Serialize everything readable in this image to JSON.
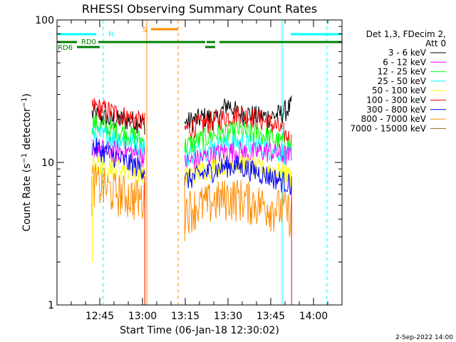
{
  "chart_data": {
    "type": "line",
    "title": "RHESSI Observing Summary Count Rates",
    "xlabel": "Start Time (06-Jan-18 12:30:02)",
    "ylabel": "Count Rate (s⁻¹ detector⁻¹)",
    "ylabel_main": "Count Rate (s",
    "ylabel_sup1": "−1",
    "ylabel_mid": " detector",
    "ylabel_sup2": "−1",
    "ylabel_end": ")",
    "y_scale": "log",
    "ylim": [
      1,
      100
    ],
    "yticks": [
      {
        "value": 1,
        "label": "1"
      },
      {
        "value": 10,
        "label": "10"
      },
      {
        "value": 100,
        "label": "100"
      }
    ],
    "xlim_minutes": [
      0,
      100
    ],
    "xticks": [
      {
        "minute": 15,
        "label": "12:45"
      },
      {
        "minute": 30,
        "label": "13:00"
      },
      {
        "minute": 45,
        "label": "13:15"
      },
      {
        "minute": 60,
        "label": "13:30"
      },
      {
        "minute": 75,
        "label": "13:45"
      },
      {
        "minute": 90,
        "label": "14:00"
      }
    ],
    "legend_header": [
      "Det 1,3, FDecim 2,",
      "Att 0"
    ],
    "legend_placement": "right",
    "data_segments_minutes": [
      [
        12.3,
        30.8
      ],
      [
        44.8,
        82.3
      ]
    ],
    "series": [
      {
        "name": "3 - 6 keV",
        "color": "#000000",
        "seg1": [
          22,
          20,
          20,
          19
        ],
        "seg2": [
          19,
          20,
          21,
          20,
          26,
          22,
          22,
          21,
          21,
          22,
          25
        ]
      },
      {
        "name": "6 - 12 keV",
        "color": "#ff00ff",
        "seg1": [
          13,
          12,
          12,
          11
        ],
        "seg2": [
          10,
          10.5,
          11,
          11.5,
          12,
          12,
          11.5,
          12,
          12,
          11.5,
          11
        ]
      },
      {
        "name": "12 - 25 keV",
        "color": "#00ff00",
        "seg1": [
          19,
          17,
          16,
          14
        ],
        "seg2": [
          13,
          14,
          15,
          16,
          16,
          17,
          16,
          16,
          15,
          14,
          13
        ]
      },
      {
        "name": "25 - 50 keV",
        "color": "#00ffff",
        "seg1": [
          16,
          15,
          14,
          13
        ],
        "seg2": [
          11,
          12,
          12.5,
          13,
          13.5,
          14,
          13.5,
          13,
          12.5,
          12,
          11
        ]
      },
      {
        "name": "50 - 100 keV",
        "color": "#ffff00",
        "seg1": [
          10,
          9.5,
          9,
          8.5
        ],
        "seg2": [
          8,
          8.5,
          9,
          9.5,
          10,
          10,
          9.5,
          9,
          9,
          8.5,
          8
        ]
      },
      {
        "name": "100 - 300 keV",
        "color": "#ff0000",
        "seg1": [
          25,
          23,
          21,
          19
        ],
        "seg2": [
          17,
          18,
          19,
          20,
          21,
          22,
          21,
          20,
          19,
          17,
          14
        ]
      },
      {
        "name": "300 - 800 keV",
        "color": "#0000ff",
        "seg1": [
          13,
          11.5,
          10,
          9
        ],
        "seg2": [
          7.5,
          8,
          8.5,
          9,
          9.5,
          9.5,
          9,
          8.5,
          8,
          7.5,
          7
        ]
      },
      {
        "name": "800 - 7000 keV",
        "color": "#ff8c00",
        "seg1": [
          7.5,
          6.5,
          6,
          5.5
        ],
        "seg2": [
          4.8,
          5,
          5.2,
          5.5,
          5.8,
          5.8,
          5.5,
          5.2,
          5,
          4.8,
          4.5
        ]
      },
      {
        "name": "7000 - 15000 keV",
        "color": "#8b6914",
        "seg1": [],
        "seg2": []
      }
    ],
    "flags": [
      {
        "label": "N",
        "color": "#00ffff",
        "segments": [
          [
            0,
            13.8
          ],
          [
            82,
            100
          ]
        ],
        "level": 1
      },
      {
        "label": "S",
        "color": "#ff8c00",
        "segments": [
          [
            33,
            42.5
          ]
        ],
        "level": 0
      },
      {
        "label": "RD0",
        "color": "#008000",
        "segments": [
          [
            0,
            7
          ],
          [
            14.5,
            52
          ],
          [
            52.5,
            55.5
          ],
          [
            57,
            100
          ]
        ],
        "level": 2
      },
      {
        "label": "RD6",
        "color": "#008000",
        "segments": [
          [
            7,
            15
          ],
          [
            52,
            55.5
          ]
        ],
        "level": 3
      }
    ],
    "vertical_markers": [
      {
        "minute": 0,
        "color": "#00ffff",
        "style": "solid"
      },
      {
        "minute": 16.2,
        "color": "#00ffff",
        "style": "dashed"
      },
      {
        "minute": 31.5,
        "color": "#ff8c00",
        "style": "solid"
      },
      {
        "minute": 42.5,
        "color": "#ff8c00",
        "style": "dashed"
      },
      {
        "minute": 79.0,
        "color": "#00ffff",
        "style": "solid"
      },
      {
        "minute": 94.7,
        "color": "#00ffff",
        "style": "dashed"
      }
    ],
    "grid": false
  },
  "footer": {
    "date": "2-Sep-2022 14:00"
  }
}
